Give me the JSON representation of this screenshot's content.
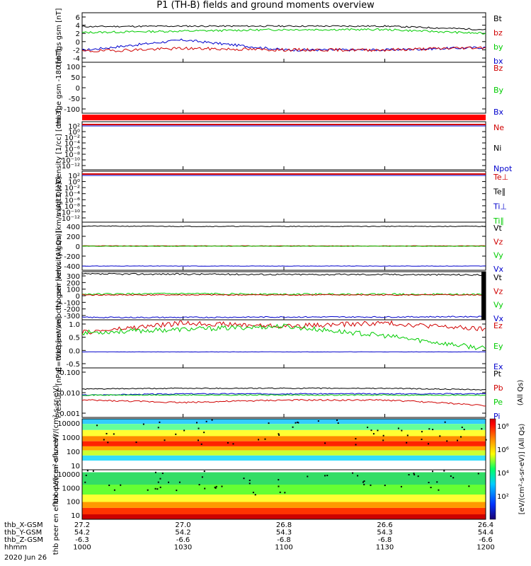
{
  "title": "P1 (TH-B) fields and ground moments overview",
  "panels": [
    {
      "id": "fgs",
      "ylabel": "thb fgs gsm [nT]",
      "ticks": [
        "6",
        "4",
        "2",
        "0",
        "-2",
        "-4"
      ],
      "legend": [
        {
          "t": "Bt",
          "c": "#000"
        },
        {
          "t": "bz",
          "c": "#d00000"
        },
        {
          "t": "by",
          "c": "#00cc00"
        },
        {
          "t": "bx",
          "c": "#0000cc"
        }
      ]
    },
    {
      "id": "fge",
      "ylabel": "thb fge gsm -180 [nT]",
      "ticks": [
        "100",
        "50",
        "0",
        "-50",
        "-100"
      ],
      "legend": [
        {
          "t": "Bz",
          "c": "#d00000"
        },
        {
          "t": "By",
          "c": "#00cc00"
        },
        {
          "t": "Bx",
          "c": "#0000cc"
        }
      ]
    },
    {
      "id": "dens",
      "ylabel": "Density [1/cc] [cm-3]",
      "ticks": [
        "10²",
        "10⁰",
        "10⁻²",
        "10⁻⁴",
        "10⁻⁶",
        "10⁻⁸",
        "10⁻¹⁰",
        "10⁻¹²"
      ],
      "legend": [
        {
          "t": "Ne",
          "c": "#d00000"
        },
        {
          "t": "Ni",
          "c": "#000"
        },
        {
          "t": "Npot",
          "c": "#0000cc"
        }
      ]
    },
    {
      "id": "temp",
      "ylabel": "magt3 [eV]",
      "ticks": [
        "10²",
        "10⁰",
        "10⁻²",
        "10⁻⁴",
        "10⁻⁶",
        "10⁻⁸",
        "10⁻¹⁰",
        "10⁻¹²"
      ],
      "legend": [
        {
          "t": "Te⊥",
          "c": "#d00000"
        },
        {
          "t": "Te∥",
          "c": "#000"
        },
        {
          "t": "Ti⊥",
          "c": "#0000cc"
        },
        {
          "t": "Ti∥",
          "c": "#00cc00"
        }
      ]
    },
    {
      "id": "vi",
      "ylabel": "thb peir velocity gsm [km/s (All Qs)]",
      "ticks": [
        "400",
        "200",
        "0",
        "-200",
        "-400"
      ],
      "legend": [
        {
          "t": "Vt",
          "c": "#000"
        },
        {
          "t": "Vz",
          "c": "#d00000"
        },
        {
          "t": "Vy",
          "c": "#00cc00"
        },
        {
          "t": "Vx",
          "c": "#0000cc"
        }
      ]
    },
    {
      "id": "ve",
      "ylabel": "thb peer velocity gsm [km/s (All Qs)]",
      "ticks": [
        "300",
        "200",
        "100",
        "0",
        "-100",
        "-200",
        "-300"
      ],
      "legend": [
        {
          "t": "Vt",
          "c": "#000"
        },
        {
          "t": "Vz",
          "c": "#d00000"
        },
        {
          "t": "Vy",
          "c": "#00cc00"
        },
        {
          "t": "Vx",
          "c": "#0000cc"
        }
      ]
    },
    {
      "id": "ef",
      "ylabel": "E=-VxB [mV/m]",
      "ticks": [
        "1.0",
        "0.5",
        "0.0",
        "-0.5"
      ],
      "legend": [
        {
          "t": "Ez",
          "c": "#d00000"
        },
        {
          "t": "Ey",
          "c": "#00cc00"
        },
        {
          "t": "Ex",
          "c": "#0000cc"
        }
      ]
    },
    {
      "id": "pres",
      "ylabel": "Pressure [nPa]",
      "ticks": [
        "0.100",
        "0.010",
        "0.001"
      ],
      "legend": [
        {
          "t": "Pt",
          "c": "#000"
        },
        {
          "t": "Pb",
          "c": "#d00000"
        },
        {
          "t": "Pe",
          "c": "#00cc00"
        },
        {
          "t": "Pi",
          "c": "#0000cc"
        }
      ],
      "extra": "(All Qs)"
    },
    {
      "id": "ispec",
      "ylabel": "thb peir en eflux eV/(cm²-s-sr-eV)",
      "ticks": [
        "10000",
        "1000",
        "100",
        "10"
      ]
    },
    {
      "id": "espec",
      "ylabel": "thb peer en eflux eV/(cm²-s-sr-eV)",
      "ticks": [
        "10000",
        "1000",
        "100",
        "10"
      ]
    }
  ],
  "colorbar": {
    "label": "[eV/(cm²-s-sr-eV)] (All Qs)",
    "ticks": [
      "10⁸",
      "10⁶",
      "10⁴",
      "10²"
    ]
  },
  "xaxis": {
    "rows": [
      {
        "name": "thb_X-GSM",
        "vals": [
          "27.2",
          "27.0",
          "26.8",
          "26.6",
          "26.4"
        ]
      },
      {
        "name": "thb_Y-GSM",
        "vals": [
          "54.2",
          "54.2",
          "54.3",
          "54.3",
          "54.4"
        ]
      },
      {
        "name": "thb_Z-GSM",
        "vals": [
          "-6.3",
          "-6.6",
          "-6.8",
          "-6.8",
          "-6.6"
        ]
      },
      {
        "name": "hhmm",
        "vals": [
          "1000",
          "1030",
          "1100",
          "1130",
          "1200"
        ]
      }
    ],
    "date": "2020 Jun 26"
  },
  "chart_data": [
    {
      "type": "line",
      "title": "thb fgs gsm",
      "ylim": [
        -4,
        6
      ],
      "x": [
        "1000",
        "1030",
        "1100",
        "1130",
        "1200"
      ],
      "series": [
        {
          "name": "Bt",
          "values": [
            3.2,
            3.3,
            3.3,
            3.3,
            2.6
          ]
        },
        {
          "name": "bz",
          "values": [
            -1.8,
            -1.2,
            -1.5,
            -1.5,
            -1.0
          ]
        },
        {
          "name": "by",
          "values": [
            2.0,
            2.3,
            2.6,
            2.6,
            1.8
          ]
        },
        {
          "name": "bx",
          "values": [
            -1.6,
            0.5,
            -1.5,
            -1.5,
            -1.0
          ]
        }
      ]
    },
    {
      "type": "line",
      "title": "thb peir velocity gsm",
      "ylim": [
        -400,
        400
      ],
      "x": [
        "1000",
        "1030",
        "1100",
        "1130",
        "1200"
      ],
      "series": [
        {
          "name": "Vt",
          "values": [
            335,
            330,
            330,
            330,
            330
          ]
        },
        {
          "name": "Vz",
          "values": [
            5,
            5,
            5,
            5,
            5
          ]
        },
        {
          "name": "Vy",
          "values": [
            0,
            0,
            0,
            0,
            0
          ]
        },
        {
          "name": "Vx",
          "values": [
            -330,
            -330,
            -330,
            -330,
            -330
          ]
        }
      ]
    },
    {
      "type": "line",
      "title": "thb peer velocity gsm",
      "ylim": [
        -300,
        300
      ],
      "x": [
        "1000",
        "1030",
        "1100",
        "1130",
        "1200"
      ],
      "series": [
        {
          "name": "Vt",
          "values": [
            270,
            270,
            265,
            265,
            260
          ]
        },
        {
          "name": "Vz",
          "values": [
            10,
            10,
            10,
            10,
            10
          ]
        },
        {
          "name": "Vy",
          "values": [
            20,
            25,
            20,
            20,
            15
          ]
        },
        {
          "name": "Vx",
          "values": [
            -270,
            -270,
            -265,
            -265,
            -260
          ]
        }
      ]
    },
    {
      "type": "line",
      "title": "E=-VxB",
      "ylim": [
        -0.5,
        1.0
      ],
      "x": [
        "1000",
        "1030",
        "1100",
        "1130",
        "1200"
      ],
      "series": [
        {
          "name": "Ez",
          "values": [
            0.6,
            0.9,
            0.8,
            0.9,
            0.7
          ]
        },
        {
          "name": "Ey",
          "values": [
            0.6,
            0.7,
            0.8,
            0.5,
            0.1
          ]
        },
        {
          "name": "Ex",
          "values": [
            0.0,
            0.0,
            0.0,
            0.0,
            0.0
          ]
        }
      ]
    },
    {
      "type": "line",
      "title": "Pressure",
      "ylim": [
        0.001,
        0.1
      ],
      "x": [
        "1000",
        "1030",
        "1100",
        "1130",
        "1200"
      ],
      "series": [
        {
          "name": "Pt",
          "values": [
            0.014,
            0.015,
            0.015,
            0.015,
            0.013
          ]
        },
        {
          "name": "Pb",
          "values": [
            0.005,
            0.004,
            0.005,
            0.005,
            0.003
          ]
        },
        {
          "name": "Pe",
          "values": [
            0.008,
            0.008,
            0.008,
            0.008,
            0.008
          ]
        },
        {
          "name": "Pi",
          "values": [
            0.008,
            0.009,
            0.009,
            0.009,
            0.009
          ]
        }
      ]
    }
  ]
}
